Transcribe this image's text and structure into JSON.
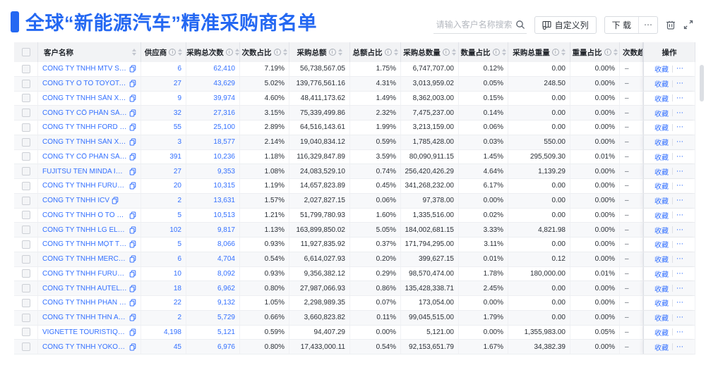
{
  "page": {
    "title": "全球“新能源汽车”精准采购商名单"
  },
  "colors": {
    "title_blue": "#2468F2",
    "link_blue": "#3370FF",
    "header_bg": "#F2F3F5"
  },
  "toolbar": {
    "search": {
      "placeholder": "请输入客户名称搜索",
      "icon": "search-icon"
    },
    "customize_columns": {
      "label": "自定义列",
      "icon": "columns-settings-icon"
    },
    "download": {
      "label": "下 载"
    },
    "download_more": {
      "label": "⋯"
    },
    "trash_icon": "trash-icon",
    "fullscreen_icon": "fullscreen-icon"
  },
  "table": {
    "columns": {
      "name": {
        "label": "客户名称",
        "info": false,
        "sort": true
      },
      "supplier": {
        "label": "供应商",
        "info": true,
        "sort": true
      },
      "times": {
        "label": "采购总次数",
        "info": true,
        "sort": true
      },
      "times_pct": {
        "label": "次数占比",
        "info": true,
        "sort": true
      },
      "amount": {
        "label": "采购总额",
        "info": true,
        "sort": true
      },
      "amount_pct": {
        "label": "总额占比",
        "info": true,
        "sort": true
      },
      "qty": {
        "label": "采购总数量",
        "info": true,
        "sort": true
      },
      "qty_pct": {
        "label": "数量占比",
        "info": true,
        "sort": true
      },
      "weight": {
        "label": "采购总重量",
        "info": true,
        "sort": true
      },
      "weight_pct": {
        "label": "重量占比",
        "info": true,
        "sort": true
      },
      "trend": {
        "label": "次数趋势",
        "info": false,
        "sort": false
      },
      "actions": {
        "label": "操作",
        "info": false,
        "sort": false
      }
    },
    "action_links": {
      "favorite": "收藏",
      "more": "⋯"
    },
    "rows": [
      {
        "name": "CÔNG TY TNHH MTV SẢN XUẤ...",
        "supplier": "6",
        "times": "62,410",
        "times_pct": "7.19%",
        "amount": "56,738,567.05",
        "amount_pct": "1.75%",
        "qty": "6,747,707.00",
        "qty_pct": "0.12%",
        "weight": "0.00",
        "weight_pct": "0.00%",
        "trend": "–"
      },
      {
        "name": "CÔNG TY Ô TÔ TOYOTA VIỆT ...",
        "supplier": "27",
        "times": "43,629",
        "times_pct": "5.02%",
        "amount": "139,776,561.16",
        "amount_pct": "4.31%",
        "qty": "3,013,959.02",
        "qty_pct": "0.05%",
        "weight": "248.50",
        "weight_pct": "0.00%",
        "trend": "–"
      },
      {
        "name": "CÔNG TY TNHH SẢN XUẤT VÀ ...",
        "supplier": "9",
        "times": "39,974",
        "times_pct": "4.60%",
        "amount": "48,411,173.62",
        "amount_pct": "1.49%",
        "qty": "8,362,003.00",
        "qty_pct": "0.15%",
        "weight": "0.00",
        "weight_pct": "0.00%",
        "trend": "–"
      },
      {
        "name": "CÔNG TY CỔ PHẦN SẢN XUẤT...",
        "supplier": "32",
        "times": "27,316",
        "times_pct": "3.15%",
        "amount": "75,339,499.86",
        "amount_pct": "2.32%",
        "qty": "7,475,237.00",
        "qty_pct": "0.14%",
        "weight": "0.00",
        "weight_pct": "0.00%",
        "trend": "–"
      },
      {
        "name": "CÔNG TY TNHH FORD VIỆT NAM",
        "supplier": "55",
        "times": "25,100",
        "times_pct": "2.89%",
        "amount": "64,516,143.61",
        "amount_pct": "1.99%",
        "qty": "3,213,159.00",
        "qty_pct": "0.06%",
        "weight": "0.00",
        "weight_pct": "0.00%",
        "trend": "–"
      },
      {
        "name": "CÔNG TY TNHH SẢN XUẤT VÀ ...",
        "supplier": "3",
        "times": "18,577",
        "times_pct": "2.14%",
        "amount": "19,040,834.12",
        "amount_pct": "0.59%",
        "qty": "1,785,428.00",
        "qty_pct": "0.03%",
        "weight": "550.00",
        "weight_pct": "0.00%",
        "trend": "–"
      },
      {
        "name": "CÔNG TY CỔ PHẦN SẢN XUẤT...",
        "supplier": "391",
        "times": "10,236",
        "times_pct": "1.18%",
        "amount": "116,329,847.89",
        "amount_pct": "3.59%",
        "qty": "80,090,911.15",
        "qty_pct": "1.45%",
        "weight": "295,509.30",
        "weight_pct": "0.01%",
        "trend": "–"
      },
      {
        "name": "FUJITSU TEN MINDA INDIA PVT...",
        "supplier": "27",
        "times": "9,353",
        "times_pct": "1.08%",
        "amount": "24,083,529.10",
        "amount_pct": "0.74%",
        "qty": "256,420,426.29",
        "qty_pct": "4.64%",
        "weight": "1,139.29",
        "weight_pct": "0.00%",
        "trend": "–"
      },
      {
        "name": "CÔNG TY TNHH FURUKAWA A...",
        "supplier": "20",
        "times": "10,315",
        "times_pct": "1.19%",
        "amount": "14,657,823.89",
        "amount_pct": "0.45%",
        "qty": "341,268,232.00",
        "qty_pct": "6.17%",
        "weight": "0.00",
        "weight_pct": "0.00%",
        "trend": "–"
      },
      {
        "name": "CÔNG TY TNHH ICV",
        "supplier": "2",
        "times": "13,631",
        "times_pct": "1.57%",
        "amount": "2,027,827.15",
        "amount_pct": "0.06%",
        "qty": "97,378.00",
        "qty_pct": "0.00%",
        "weight": "0.00",
        "weight_pct": "0.00%",
        "trend": "–"
      },
      {
        "name": "CÔNG TY TNHH Ô TÔ MITSUBI...",
        "supplier": "5",
        "times": "10,513",
        "times_pct": "1.21%",
        "amount": "51,799,780.93",
        "amount_pct": "1.60%",
        "qty": "1,335,516.00",
        "qty_pct": "0.02%",
        "weight": "0.00",
        "weight_pct": "0.00%",
        "trend": "–"
      },
      {
        "name": "CÔNG TY TNHH LG ELECTRON...",
        "supplier": "102",
        "times": "9,817",
        "times_pct": "1.13%",
        "amount": "163,899,850.02",
        "amount_pct": "5.05%",
        "qty": "184,002,681.15",
        "qty_pct": "3.33%",
        "weight": "4,821.98",
        "weight_pct": "0.00%",
        "trend": "–"
      },
      {
        "name": "CÔNG TY TNHH MỘT THÀNH V...",
        "supplier": "5",
        "times": "8,066",
        "times_pct": "0.93%",
        "amount": "11,927,835.92",
        "amount_pct": "0.37%",
        "qty": "171,794,295.00",
        "qty_pct": "3.11%",
        "weight": "0.00",
        "weight_pct": "0.00%",
        "trend": "–"
      },
      {
        "name": "CÔNG TY TNHH MERCEDES–B...",
        "supplier": "6",
        "times": "4,704",
        "times_pct": "0.54%",
        "amount": "6,614,027.93",
        "amount_pct": "0.20%",
        "qty": "399,627.15",
        "qty_pct": "0.01%",
        "weight": "0.12",
        "weight_pct": "0.00%",
        "trend": "–"
      },
      {
        "name": "CÔNG TY TNHH FURUKAWA A...",
        "supplier": "10",
        "times": "8,092",
        "times_pct": "0.93%",
        "amount": "9,356,382.12",
        "amount_pct": "0.29%",
        "qty": "98,570,474.00",
        "qty_pct": "1.78%",
        "weight": "180,000.00",
        "weight_pct": "0.01%",
        "trend": "–"
      },
      {
        "name": "CÔNG TY TNHH AUTEL VIỆT N...",
        "supplier": "18",
        "times": "6,962",
        "times_pct": "0.80%",
        "amount": "27,987,066.93",
        "amount_pct": "0.86%",
        "qty": "135,428,338.71",
        "qty_pct": "2.45%",
        "weight": "0.00",
        "weight_pct": "0.00%",
        "trend": "–"
      },
      {
        "name": "CÔNG TY TNHH PHÂN PHỐI T...",
        "supplier": "22",
        "times": "9,132",
        "times_pct": "1.05%",
        "amount": "2,298,989.35",
        "amount_pct": "0.07%",
        "qty": "173,054.00",
        "qty_pct": "0.00%",
        "weight": "0.00",
        "weight_pct": "0.00%",
        "trend": "–"
      },
      {
        "name": "CÔNG TY TNHH THN AUTOPAR...",
        "supplier": "2",
        "times": "5,729",
        "times_pct": "0.66%",
        "amount": "3,660,823.82",
        "amount_pct": "0.11%",
        "qty": "99,045,515.00",
        "qty_pct": "1.79%",
        "weight": "0.00",
        "weight_pct": "0.00%",
        "trend": "–"
      },
      {
        "name": "VIGNETTE TOURISTIQUE G UNI...",
        "supplier": "4,198",
        "times": "5,121",
        "times_pct": "0.59%",
        "amount": "94,407.29",
        "amount_pct": "0.00%",
        "qty": "5,121.00",
        "qty_pct": "0.00%",
        "weight": "1,355,983.00",
        "weight_pct": "0.05%",
        "trend": "–"
      },
      {
        "name": "CÔNG TY TNHH YOKOWO VIỆT...",
        "supplier": "45",
        "times": "6,976",
        "times_pct": "0.80%",
        "amount": "17,433,000.11",
        "amount_pct": "0.54%",
        "qty": "92,153,651.79",
        "qty_pct": "1.67%",
        "weight": "34,382.39",
        "weight_pct": "0.00%",
        "trend": "–"
      }
    ]
  }
}
